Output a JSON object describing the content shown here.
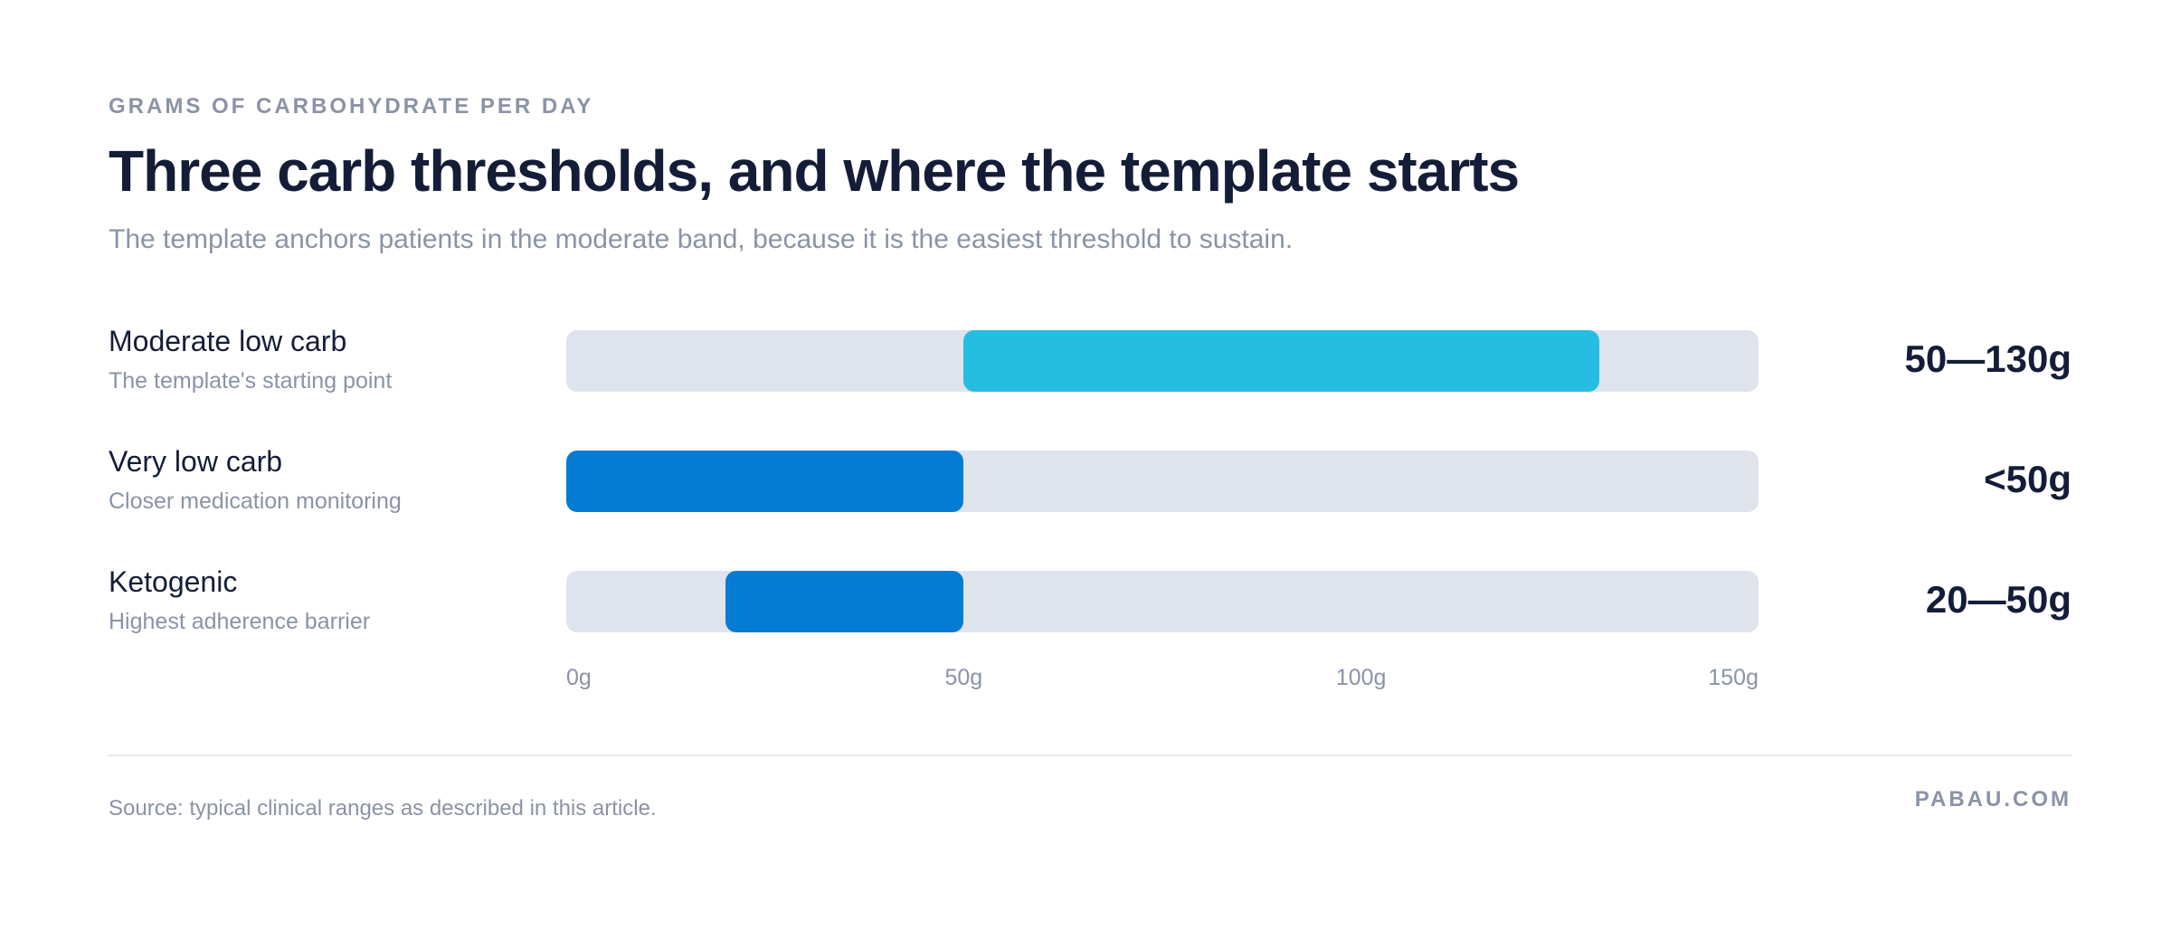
{
  "header": {
    "eyebrow": "GRAMS OF CARBOHYDRATE PER DAY",
    "title": "Three carb thresholds, and where the template starts",
    "subtitle": "The template anchors patients in the moderate band, because it is the easiest threshold to sustain."
  },
  "footer": {
    "source": "Source: typical clinical ranges as described in this article.",
    "brand": "PABAU.COM"
  },
  "chart_data": {
    "type": "bar",
    "orientation": "horizontal-range",
    "xlim": [
      0,
      150
    ],
    "xticks": [
      "0g",
      "50g",
      "100g",
      "150g"
    ],
    "tick_values": [
      0,
      50,
      100,
      150
    ],
    "rows": [
      {
        "name": "Moderate low carb",
        "note": "The template's starting point",
        "start": 50,
        "end": 130,
        "label": "50—130g",
        "color": "#26bde2"
      },
      {
        "name": "Very low carb",
        "note": "Closer medication monitoring",
        "start": 0,
        "end": 50,
        "label": "<50g",
        "color": "#057cd3"
      },
      {
        "name": "Ketogenic",
        "note": "Highest adherence barrier",
        "start": 20,
        "end": 50,
        "label": "20—50g",
        "color": "#057cd3"
      }
    ],
    "track_color": "#dfe3ec"
  }
}
